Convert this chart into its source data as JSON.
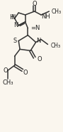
{
  "bg_color": "#faf6ee",
  "bond_color": "#333333",
  "lw": 1.1,
  "fs": 6.5,
  "xlim": [
    0,
    89
  ],
  "ylim": [
    0,
    186
  ]
}
